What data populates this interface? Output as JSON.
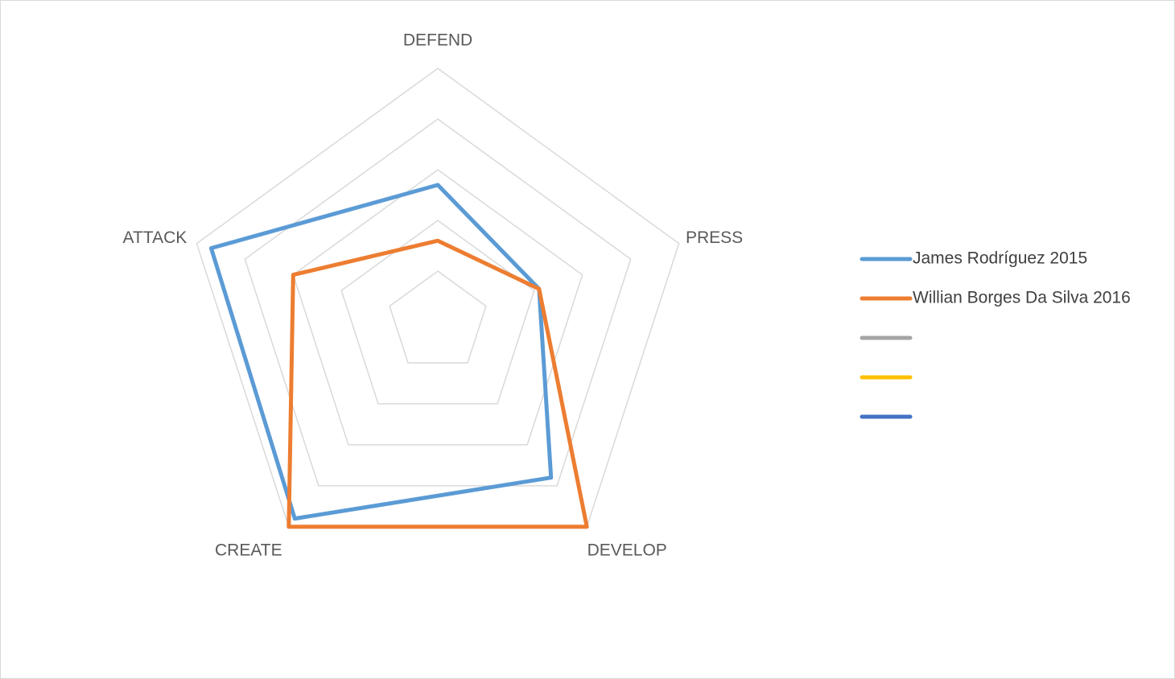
{
  "chart_data": {
    "type": "radar",
    "axes": [
      "DEFEND",
      "PRESS",
      "DEVELOP",
      "CREATE",
      "ATTACK"
    ],
    "rmax": 5,
    "grid_levels": [
      1,
      2,
      3,
      4,
      5
    ],
    "grid": true,
    "legend_position": "right",
    "series": [
      {
        "name": "James Rodríguez 2015",
        "color": "#5b9bd5",
        "values": [
          2.7,
          2.1,
          3.8,
          4.8,
          4.7
        ]
      },
      {
        "name": "Willian Borges Da Silva 2016",
        "color": "#ed7d31",
        "values": [
          1.6,
          2.1,
          5.0,
          5.0,
          3.0
        ]
      }
    ],
    "legend": [
      {
        "name": "James Rodríguez 2015",
        "color": "#5b9bd5"
      },
      {
        "name": "Willian Borges Da Silva 2016",
        "color": "#ed7d31"
      },
      {
        "name": "",
        "color": "#a5a5a5"
      },
      {
        "name": "",
        "color": "#ffc000"
      },
      {
        "name": "",
        "color": "#4472c4"
      }
    ]
  }
}
